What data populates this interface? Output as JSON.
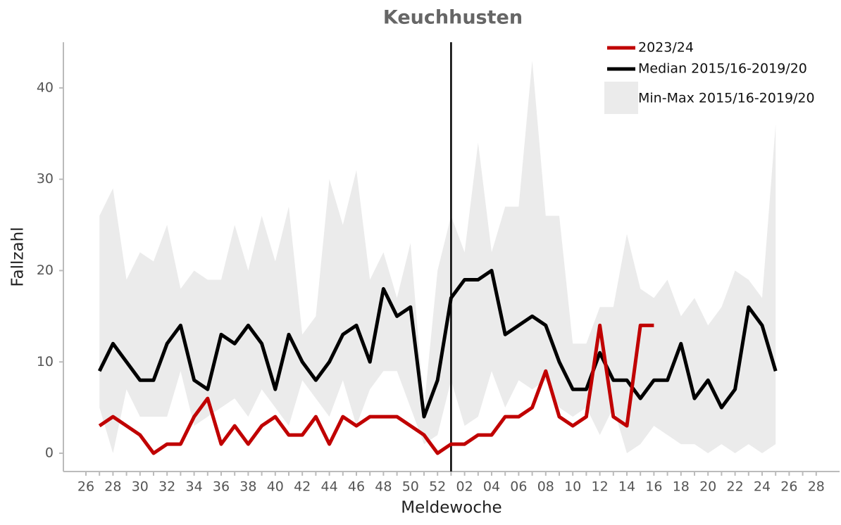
{
  "chart_data": {
    "type": "line",
    "title": "Keuchhusten",
    "x_label": "Meldewoche",
    "y_label": "Fallzahl",
    "categories": [
      "26",
      null,
      "28",
      null,
      "30",
      null,
      "32",
      null,
      "34",
      null,
      "36",
      null,
      "38",
      null,
      "40",
      null,
      "42",
      null,
      "44",
      null,
      "46",
      null,
      "48",
      null,
      "50",
      null,
      "52",
      null,
      "02",
      null,
      "04",
      null,
      "06",
      null,
      "08",
      null,
      "10",
      null,
      "12",
      null,
      "14",
      null,
      "16",
      null,
      "18",
      null,
      "20",
      null,
      "22",
      null,
      "24",
      null,
      "26",
      null,
      "28"
    ],
    "series": [
      {
        "name": "2023/24",
        "color": "#c00000",
        "values": [
          null,
          3,
          4,
          3,
          2,
          0,
          1,
          1,
          4,
          6,
          1,
          3,
          1,
          3,
          4,
          2,
          2,
          4,
          1,
          4,
          3,
          4,
          4,
          4,
          3,
          2,
          0,
          1,
          1,
          2,
          2,
          4,
          4,
          5,
          9,
          4,
          3,
          4,
          14,
          4,
          3,
          14,
          14,
          null,
          null,
          null,
          null,
          null,
          null,
          null,
          null,
          null,
          null,
          null,
          null
        ]
      },
      {
        "name": "Median 2015/16-2019/20",
        "color": "#000000",
        "values": [
          null,
          9,
          12,
          10,
          8,
          8,
          12,
          14,
          8,
          7,
          13,
          12,
          14,
          12,
          7,
          13,
          10,
          8,
          10,
          13,
          14,
          10,
          18,
          15,
          16,
          4,
          8,
          17,
          19,
          19,
          20,
          13,
          14,
          15,
          14,
          10,
          7,
          7,
          11,
          8,
          8,
          6,
          8,
          8,
          12,
          6,
          8,
          5,
          7,
          16,
          14,
          9,
          null,
          null,
          null
        ]
      }
    ],
    "band": {
      "name": "Min-Max 2015/16-2019/20",
      "color": "#ebebeb",
      "max": [
        null,
        26,
        29,
        19,
        22,
        21,
        25,
        18,
        20,
        19,
        19,
        25,
        20,
        26,
        21,
        27,
        13,
        15,
        30,
        25,
        31,
        19,
        22,
        17,
        23,
        5,
        20,
        26,
        22,
        34,
        22,
        27,
        27,
        43,
        26,
        26,
        12,
        12,
        16,
        16,
        24,
        18,
        17,
        19,
        15,
        17,
        14,
        16,
        20,
        19,
        17,
        36,
        null,
        null,
        null
      ],
      "min": [
        null,
        5,
        0,
        7,
        4,
        4,
        4,
        9,
        3,
        4,
        5,
        6,
        4,
        7,
        5,
        3,
        8,
        6,
        4,
        8,
        3,
        7,
        9,
        9,
        5,
        1,
        2,
        8,
        3,
        4,
        9,
        5,
        8,
        7,
        8,
        5,
        4,
        5,
        2,
        5,
        0,
        1,
        3,
        2,
        1,
        1,
        0,
        1,
        0,
        1,
        0,
        1,
        null,
        null,
        null
      ]
    },
    "ylim": [
      -2,
      45
    ],
    "yticks": [
      0,
      10,
      20,
      30,
      40
    ],
    "grid": false,
    "legend": "top-right"
  }
}
